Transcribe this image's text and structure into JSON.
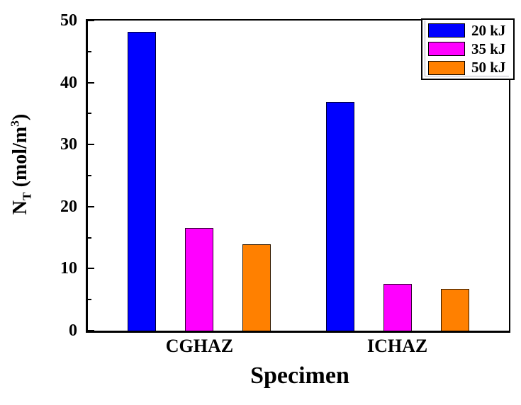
{
  "figure": {
    "background": "#ffffff",
    "text_color": "#000000",
    "axis_color": "#000000"
  },
  "chart_data": {
    "type": "bar",
    "title": "",
    "xlabel": "Specimen",
    "ylabel": "N_T (mol/m3)",
    "ylabel_parts": {
      "base": "N",
      "sub": "T",
      "mid": " (mol/m",
      "sup": "3",
      "end": ")"
    },
    "categories": [
      "CGHAZ",
      "ICHAZ"
    ],
    "series": [
      {
        "name": "20 kJ",
        "color": "#0000FF",
        "values": [
          48.2,
          36.9
        ]
      },
      {
        "name": "35 kJ",
        "color": "#FF00FF",
        "values": [
          16.5,
          7.5
        ]
      },
      {
        "name": "50 kJ",
        "color": "#FF8000",
        "values": [
          13.9,
          6.7
        ]
      }
    ],
    "ylim": [
      0,
      50
    ],
    "yticks_major": [
      0,
      10,
      20,
      30,
      40,
      50
    ],
    "yticks_minor": [
      5,
      15,
      25,
      35,
      45
    ],
    "grid": false,
    "legend_position": "top-right",
    "tick_direction": "in"
  }
}
